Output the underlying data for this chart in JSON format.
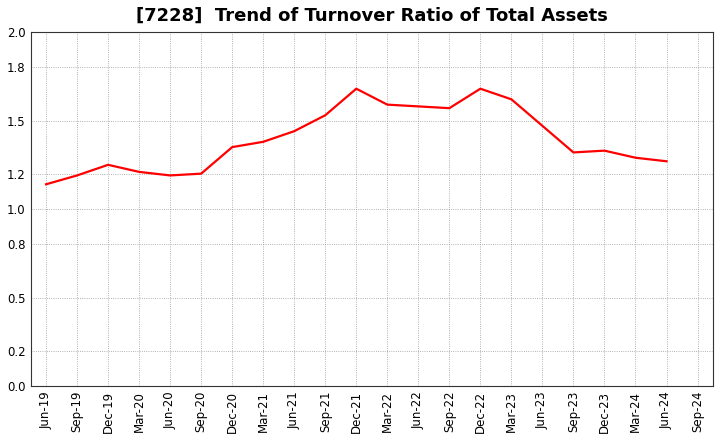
{
  "title": "[7228]  Trend of Turnover Ratio of Total Assets",
  "labels": [
    "Jun-19",
    "Sep-19",
    "Dec-19",
    "Mar-20",
    "Jun-20",
    "Sep-20",
    "Dec-20",
    "Mar-21",
    "Jun-21",
    "Sep-21",
    "Dec-21",
    "Mar-22",
    "Jun-22",
    "Sep-22",
    "Dec-22",
    "Mar-23",
    "Jun-23",
    "Sep-23",
    "Dec-23",
    "Mar-24",
    "Jun-24",
    "Sep-24"
  ],
  "values": [
    1.14,
    1.19,
    1.25,
    1.21,
    1.19,
    1.2,
    1.35,
    1.38,
    1.44,
    1.53,
    1.68,
    1.59,
    1.58,
    1.57,
    1.68,
    1.62,
    1.47,
    1.32,
    1.33,
    1.29,
    1.27,
    null
  ],
  "line_color": "#FF0000",
  "line_width": 1.6,
  "ylim": [
    0.0,
    2.0
  ],
  "yticks": [
    0.0,
    0.2,
    0.5,
    0.8,
    1.0,
    1.2,
    1.5,
    1.8,
    2.0
  ],
  "bg_color": "#FFFFFF",
  "grid_color": "#999999",
  "title_fontsize": 13,
  "tick_fontsize": 8.5
}
